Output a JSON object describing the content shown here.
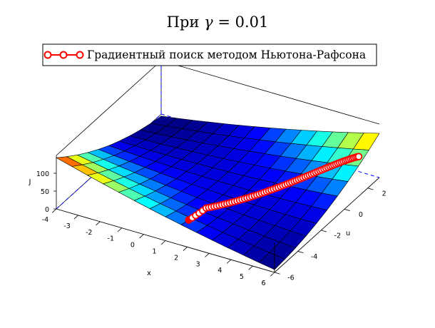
{
  "chart_data": {
    "type": "surface3d",
    "title_prefix": "При ",
    "title_gamma": "γ",
    "title_eq": " = 0.01",
    "xlabel": "x",
    "ylabel": "u",
    "zlabel": "J",
    "xlim": [
      -4,
      6
    ],
    "ylim": [
      -6,
      3
    ],
    "zlim": [
      0,
      150
    ],
    "x_ticks": [
      "-4",
      "-3",
      "-2",
      "-1",
      "0",
      "1",
      "2",
      "3",
      "4",
      "5",
      "6"
    ],
    "y_ticks": [
      "-6",
      "-4",
      "-2",
      "0",
      "2"
    ],
    "z_ticks": [
      "0",
      "50",
      "100"
    ],
    "x_tick_values": [
      -4,
      -3,
      -2,
      -1,
      0,
      1,
      2,
      3,
      4,
      5,
      6
    ],
    "y_tick_values": [
      -6,
      -4,
      -2,
      0,
      2
    ],
    "z_tick_values": [
      0,
      50,
      100
    ],
    "legend": {
      "label": "Градиентный поиск методом Ньютона-Рафсона",
      "placement": "top-center"
    },
    "colormap": [
      "#000088",
      "#0000ff",
      "#00ffff",
      "#ffff00",
      "#ff0000"
    ],
    "path_start": [
      1.8,
      -5.5
    ],
    "path_corner": [
      1.8,
      -4.0
    ],
    "path_end": [
      5.8,
      1.6
    ],
    "path_points": 75,
    "path_color": "#ff0000"
  }
}
